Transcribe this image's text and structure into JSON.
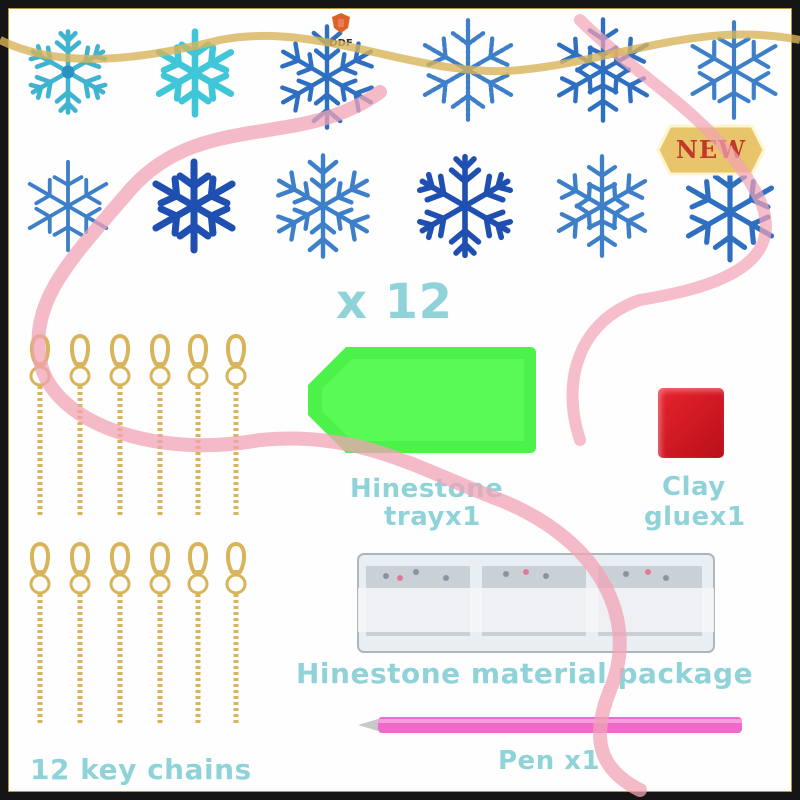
{
  "brand": {
    "name": "DDF",
    "icon": "shield-logo-icon"
  },
  "badge": {
    "text": "NEW"
  },
  "products": {
    "snowflake_count": "x 12",
    "rhinestone_tray": "Hinestone trayx1",
    "rhinestone_tray_line1": "Hinestone",
    "rhinestone_tray_line2": "trayx1",
    "clay_glue_line1": "Clay",
    "clay_glue_line2": "gluex1",
    "material_package": "Hinestone material package",
    "pen": "Pen x1",
    "key_chains": "12 key chains"
  },
  "colors": {
    "label": "#8fd3d9",
    "snowflake_blue": "#2f6fc1",
    "snowflake_teal": "#3fb3cf",
    "ribbon": "#f2a3b5",
    "tray": "#4cf24a",
    "glue": "#e8232d",
    "pen": "#f06acb",
    "gold": "#d8b45a"
  }
}
